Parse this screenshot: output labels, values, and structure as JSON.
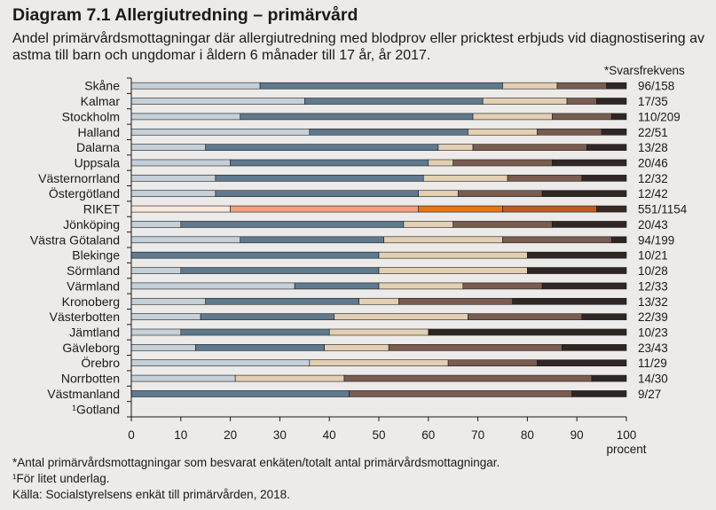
{
  "chart_data": {
    "type": "bar",
    "orientation": "horizontal",
    "stacked": true,
    "title": "Diagram 7.1 Allergiutredning – primärvård",
    "subtitle": "Andel primärvårdsmottagningar där allergiutredning med blodprov eller pricktest erbjuds vid diagnostisering av astma till barn och ungdomar i åldern 6 månader till 17 år, år 2017.",
    "response_header": "*Svarsfrekvens",
    "xlabel": "procent",
    "xlim": [
      0,
      100
    ],
    "xticks": [
      "0",
      "10",
      "20",
      "30",
      "40",
      "50",
      "60",
      "70",
      "80",
      "90",
      "100"
    ],
    "grid": false,
    "categories": [
      "Skåne",
      "Kalmar",
      "Stockholm",
      "Halland",
      "Dalarna",
      "Uppsala",
      "Västernorrland",
      "Östergötland",
      "RIKET",
      "Jönköping",
      "Västra Götaland",
      "Blekinge",
      "Sörmland",
      "Värmland",
      "Kronoberg",
      "Västerbotten",
      "Jämtland",
      "Gävleborg",
      "Örebro",
      "Norrbotten",
      "Västmanland",
      "¹Gotland"
    ],
    "response_rates": [
      "96/158",
      "17/35",
      "110/209",
      "22/51",
      "13/28",
      "20/46",
      "12/32",
      "12/42",
      "551/1154",
      "20/43",
      "94/199",
      "10/21",
      "10/28",
      "12/33",
      "13/32",
      "22/39",
      "10/23",
      "23/43",
      "11/29",
      "14/30",
      "9/27",
      ""
    ],
    "series": [
      {
        "values": [
          26,
          35,
          22,
          36,
          15,
          20,
          17,
          17,
          20,
          10,
          22,
          0,
          10,
          33,
          15,
          14,
          10,
          13,
          36,
          21,
          0,
          0
        ],
        "color": "#c5d0d9",
        "highlight": "#f7e9d9"
      },
      {
        "values": [
          49,
          36,
          47,
          32,
          47,
          40,
          42,
          41,
          38,
          45,
          29,
          50,
          40,
          17,
          31,
          27,
          30,
          26,
          0,
          0,
          44,
          0
        ],
        "color": "#5f7a8e",
        "highlight": "#f2a07e"
      },
      {
        "values": [
          11,
          17,
          16,
          14,
          7,
          5,
          17,
          8,
          17,
          10,
          24,
          30,
          30,
          17,
          8,
          27,
          20,
          13,
          28,
          22,
          0,
          0
        ],
        "color": "#e3cfb2",
        "highlight": "#e8760d"
      },
      {
        "values": [
          10,
          6,
          12,
          13,
          23,
          20,
          15,
          17,
          19,
          20,
          22,
          0,
          0,
          16,
          23,
          23,
          0,
          35,
          18,
          50,
          45,
          0
        ],
        "color": "#7a5c50",
        "highlight": "#c35b1a"
      },
      {
        "values": [
          4,
          6,
          3,
          5,
          8,
          15,
          9,
          17,
          6,
          15,
          3,
          20,
          20,
          17,
          23,
          9,
          40,
          13,
          18,
          7,
          11,
          0
        ],
        "color": "#2e2724",
        "highlight": "#3a2b22"
      }
    ],
    "highlight_category": "RIKET",
    "empty_color": "#fbf6ee"
  },
  "footnotes": [
    "*Antal primärvårdsmottagningar som besvarat enkäten/totalt antal primärvårdsmottagningar.",
    "¹För litet underlag.",
    "Källa:  Socialstyrelsens enkät till primärvården, 2018."
  ]
}
